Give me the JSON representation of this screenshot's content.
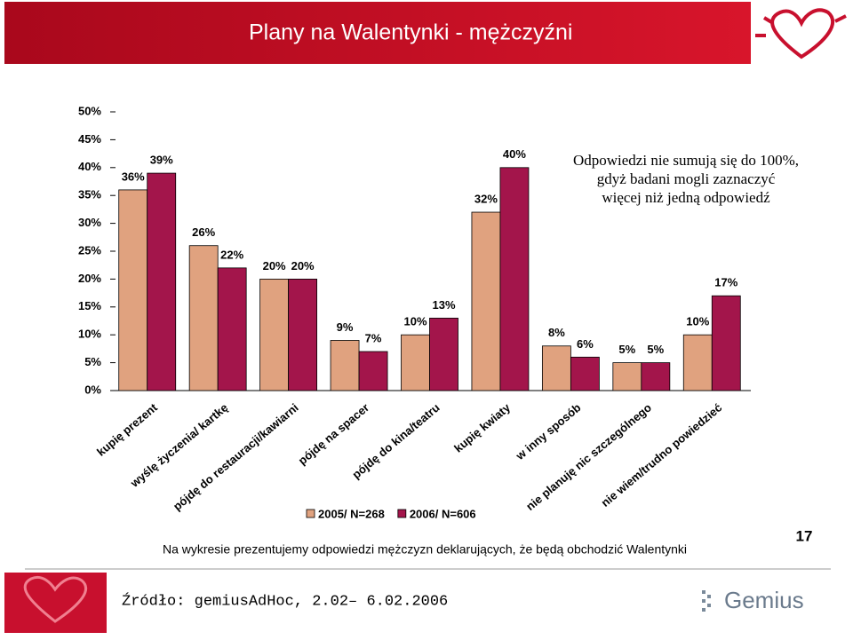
{
  "header": {
    "title": "Plany na Walentynki - mężczyźni"
  },
  "chart_data": {
    "type": "bar",
    "categories": [
      "kupię prezent",
      "wyślę życzenia/ kartkę",
      "pójdę do restauracji/kawiarni",
      "pójdę na spacer",
      "pójdę do kina/teatru",
      "kupię kwiaty",
      "w inny sposób",
      "nie planuję nic szczególnego",
      "nie wiem/trudno powiedzieć"
    ],
    "series": [
      {
        "name": "2005/ N=268",
        "color": "#e0a27f",
        "values": [
          36,
          26,
          20,
          9,
          10,
          32,
          8,
          5,
          10
        ],
        "value_labels": [
          "36%",
          "26%",
          "20%",
          "9%",
          "10%",
          "32%",
          "8%",
          "5%",
          "10%"
        ]
      },
      {
        "name": "2006/ N=606",
        "color": "#a3154b",
        "values": [
          39,
          22,
          20,
          7,
          13,
          40,
          6,
          5,
          17
        ],
        "value_labels": [
          "39%",
          "22%",
          "20%",
          "7%",
          "13%",
          "40%",
          "6%",
          "5%",
          "17%"
        ]
      }
    ],
    "ylim": [
      0,
      50
    ],
    "yticks": [
      {
        "value": 0,
        "label": "0%"
      },
      {
        "value": 5,
        "label": "5%"
      },
      {
        "value": 10,
        "label": "10%"
      },
      {
        "value": 15,
        "label": "15%"
      },
      {
        "value": 20,
        "label": "20%"
      },
      {
        "value": 25,
        "label": "25%"
      },
      {
        "value": 30,
        "label": "30%"
      },
      {
        "value": 35,
        "label": "35%"
      },
      {
        "value": 40,
        "label": "40%"
      },
      {
        "value": 45,
        "label": "45%"
      },
      {
        "value": 50,
        "label": "50%"
      }
    ],
    "annotation": [
      "Odpowiedzi nie sumują się do 100%,",
      "gdyż badani mogli zaznaczyć",
      "więcej niż jedną odpowiedź"
    ]
  },
  "footnote": "Na wykresie prezentujemy odpowiedzi mężczyzn deklarujących, że będą obchodzić Walentynki",
  "page_number": "17",
  "source": "Źródło: gemiusAdHoc, 2.02– 6.02.2006",
  "logo": "Gemius"
}
